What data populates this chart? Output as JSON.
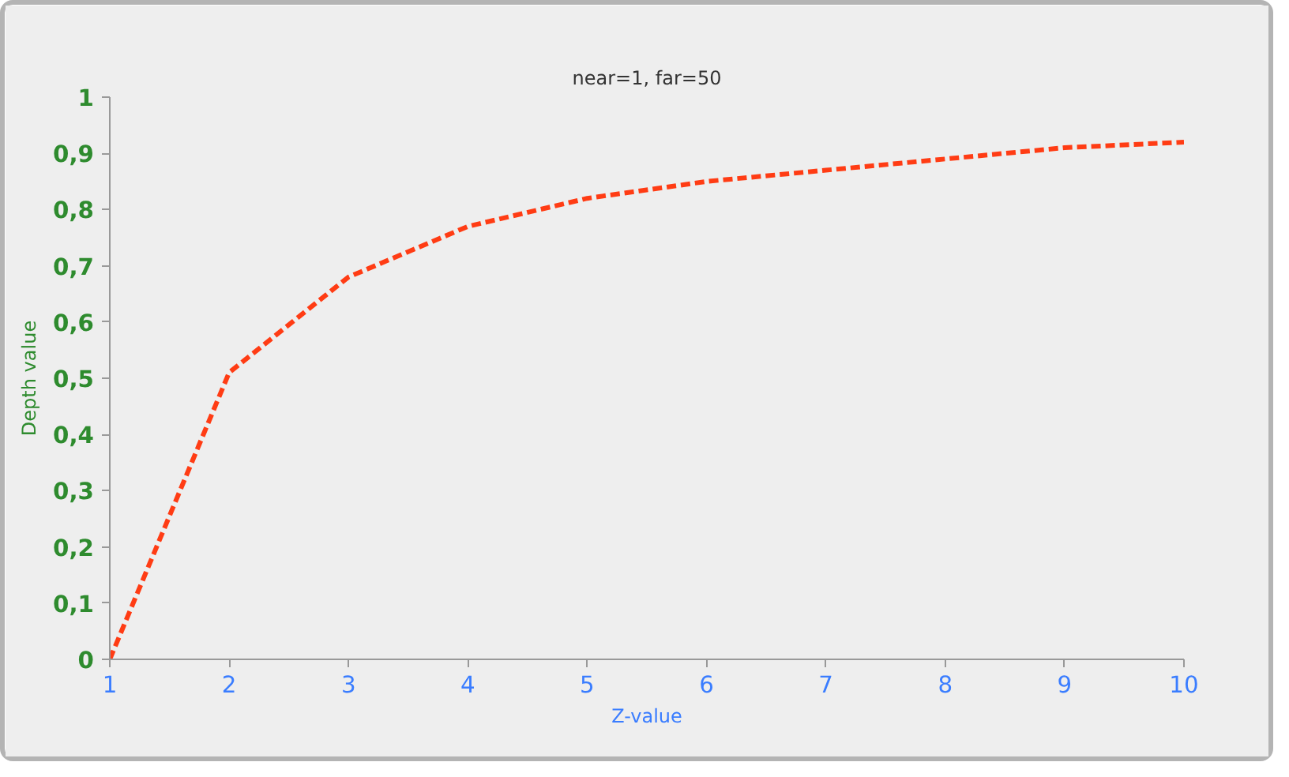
{
  "chart_data": {
    "type": "line",
    "title": "near=1, far=50",
    "xlabel": "Z-value",
    "ylabel": "Depth value",
    "x": [
      1,
      2,
      3,
      4,
      5,
      6,
      7,
      8,
      9,
      10
    ],
    "series": [
      {
        "color": "#ff3c14",
        "values": [
          0,
          0.51,
          0.68,
          0.77,
          0.82,
          0.85,
          0.87,
          0.89,
          0.91,
          0.92
        ]
      }
    ],
    "xlim": [
      1,
      10
    ],
    "xticks": [
      1,
      2,
      3,
      4,
      5,
      6,
      7,
      8,
      9,
      10
    ],
    "ylim": [
      0,
      1
    ],
    "yticks": [
      {
        "value": 0,
        "label": "0"
      },
      {
        "value": 0.1,
        "label": "0,1"
      },
      {
        "value": 0.2,
        "label": "0,2"
      },
      {
        "value": 0.3,
        "label": "0,3"
      },
      {
        "value": 0.4,
        "label": "0,4"
      },
      {
        "value": 0.5,
        "label": "0,5"
      },
      {
        "value": 0.6,
        "label": "0,6"
      },
      {
        "value": 0.7,
        "label": "0,7"
      },
      {
        "value": 0.8,
        "label": "0,8"
      },
      {
        "value": 0.9,
        "label": "0,9"
      },
      {
        "value": 1,
        "label": "1"
      }
    ],
    "grid": false,
    "line_style": "dashed"
  }
}
